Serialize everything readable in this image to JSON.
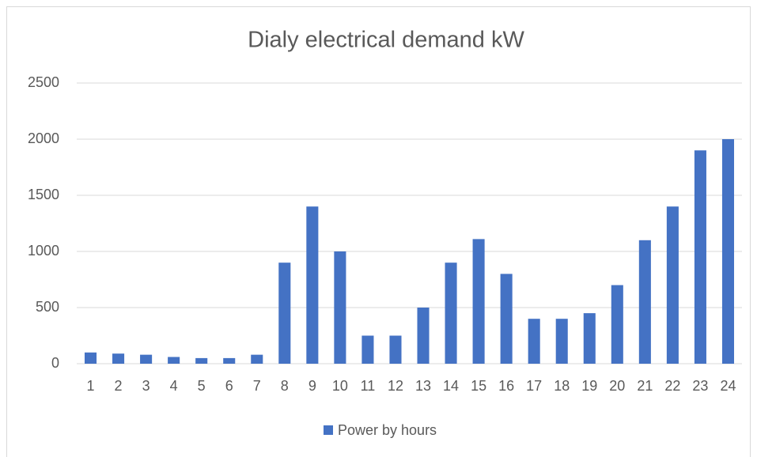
{
  "chart_data": {
    "type": "bar",
    "title": "Dialy electrical demand kW",
    "categories": [
      "1",
      "2",
      "3",
      "4",
      "5",
      "6",
      "7",
      "8",
      "9",
      "10",
      "11",
      "12",
      "13",
      "14",
      "15",
      "16",
      "17",
      "18",
      "19",
      "20",
      "21",
      "22",
      "23",
      "24"
    ],
    "series": [
      {
        "name": "Power by hours",
        "color": "#4472c4",
        "values": [
          100,
          90,
          80,
          60,
          50,
          50,
          80,
          900,
          1400,
          1000,
          250,
          250,
          500,
          900,
          1110,
          800,
          400,
          400,
          450,
          700,
          1100,
          1400,
          1900,
          2000
        ]
      }
    ],
    "ylim": [
      0,
      2500
    ],
    "yticks": [
      0,
      500,
      1000,
      1500,
      2000,
      2500
    ],
    "grid": true,
    "legend": "bottom"
  }
}
